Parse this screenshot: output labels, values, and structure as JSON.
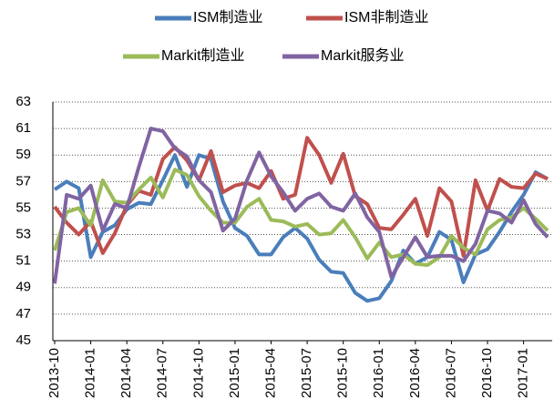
{
  "chart_data": {
    "type": "line",
    "categories": [
      "2013-10",
      null,
      null,
      "2014-01",
      null,
      null,
      "2014-04",
      null,
      null,
      "2014-07",
      null,
      null,
      "2014-10",
      null,
      null,
      "2015-01",
      null,
      null,
      "2015-04",
      null,
      null,
      "2015-07",
      null,
      null,
      "2015-10",
      null,
      null,
      "2016-01",
      null,
      null,
      "2016-04",
      null,
      null,
      "2016-07",
      null,
      null,
      "2016-10",
      null,
      null,
      "2017-01",
      null,
      null
    ],
    "series": [
      {
        "name": "ISM制造业",
        "color": "#4a7ebb",
        "values": [
          56.4,
          57.0,
          56.5,
          51.3,
          53.2,
          53.7,
          54.9,
          55.4,
          55.3,
          57.1,
          59.0,
          56.6,
          59.0,
          58.7,
          55.5,
          53.5,
          52.9,
          51.5,
          51.5,
          52.8,
          53.5,
          52.7,
          51.1,
          50.2,
          50.1,
          48.6,
          48.0,
          48.2,
          49.5,
          51.8,
          50.8,
          51.3,
          53.2,
          52.6,
          49.4,
          51.5,
          51.9,
          53.2,
          54.7,
          56.0,
          57.7,
          57.2
        ]
      },
      {
        "name": "ISM非制造业",
        "color": "#c0504d",
        "values": [
          55.1,
          53.9,
          53.0,
          54.0,
          51.6,
          53.1,
          55.2,
          56.3,
          56.0,
          58.7,
          59.6,
          58.6,
          57.1,
          59.3,
          56.2,
          56.7,
          56.9,
          56.5,
          57.8,
          55.7,
          56.0,
          60.3,
          59.0,
          56.9,
          59.1,
          55.9,
          55.3,
          53.5,
          53.4,
          54.5,
          55.7,
          52.9,
          56.5,
          55.5,
          51.4,
          57.1,
          54.8,
          57.2,
          56.6,
          56.5,
          57.6,
          57.2
        ]
      },
      {
        "name": "Markit制造业",
        "color": "#9bbb59",
        "values": [
          51.8,
          54.7,
          55.0,
          53.7,
          57.1,
          55.5,
          55.4,
          56.4,
          57.3,
          55.8,
          57.9,
          57.5,
          55.9,
          54.8,
          53.9,
          53.9,
          55.1,
          55.7,
          54.1,
          54.0,
          53.6,
          53.8,
          53.0,
          53.1,
          54.1,
          52.8,
          51.2,
          52.4,
          51.3,
          51.5,
          50.8,
          50.7,
          51.3,
          52.9,
          52.0,
          51.5,
          53.4,
          54.1,
          54.3,
          55.0,
          54.2,
          53.3
        ]
      },
      {
        "name": "Markit服务业",
        "color": "#8064a2",
        "values": [
          49.3,
          56.0,
          55.7,
          56.7,
          53.3,
          55.3,
          55.0,
          58.1,
          61.0,
          60.8,
          59.5,
          58.9,
          57.1,
          56.2,
          53.3,
          54.2,
          57.1,
          59.2,
          57.4,
          56.2,
          54.8,
          55.7,
          56.1,
          55.1,
          54.8,
          56.1,
          54.3,
          53.2,
          49.8,
          51.3,
          52.8,
          51.3,
          51.4,
          51.4,
          51.0,
          52.3,
          54.8,
          54.6,
          53.9,
          55.6,
          53.8,
          52.8
        ]
      }
    ],
    "ylim": [
      45,
      63
    ],
    "yticks": [
      45,
      47,
      49,
      51,
      53,
      55,
      57,
      59,
      61,
      63
    ],
    "grid": true,
    "legend": "top"
  }
}
